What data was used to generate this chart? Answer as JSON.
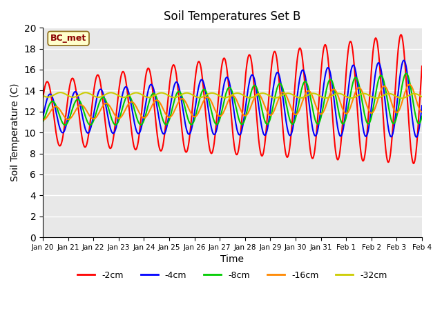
{
  "title": "Soil Temperatures Set B",
  "xlabel": "Time",
  "ylabel": "Soil Temperature (C)",
  "ylim": [
    0,
    20
  ],
  "yticks": [
    0,
    2,
    4,
    6,
    8,
    10,
    12,
    14,
    16,
    18,
    20
  ],
  "plot_bg_color": "#e8e8e8",
  "legend_text_color": "#8b0000",
  "legend_box_color": "#ffffcc",
  "series_colors": [
    "#ff0000",
    "#0000ff",
    "#00cc00",
    "#ff8800",
    "#cccc00"
  ],
  "series_labels": [
    "-2cm",
    "-4cm",
    "-8cm",
    "-16cm",
    "-32cm"
  ],
  "x_tick_labels": [
    "Jan 20",
    "Jan 21",
    "Jan 22",
    "Jan 23",
    "Jan 24",
    "Jan 25",
    "Jan 26",
    "Jan 27",
    "Jan 28",
    "Jan 29",
    "Jan 30",
    "Jan 31",
    "Feb 1",
    "Feb 2",
    "Feb 3",
    "Feb 4"
  ],
  "num_days": 15,
  "points_per_day": 48
}
